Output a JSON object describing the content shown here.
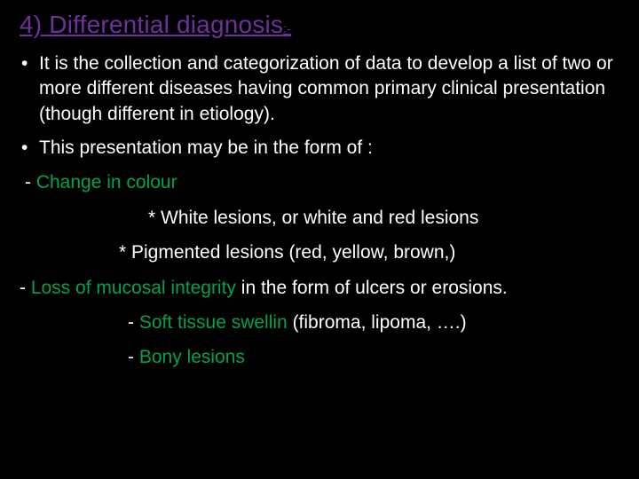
{
  "colors": {
    "background": "#000000",
    "body_text": "#ffffff",
    "title": "#7030a0",
    "highlight": "#00a44a"
  },
  "typography": {
    "title_fontsize": 28,
    "body_fontsize": 21,
    "font_family": "Arial"
  },
  "title": {
    "text": "4)   Differential diagnosis",
    "colon": ":-"
  },
  "bullets": [
    "It is the collection and categorization of data to develop a list of two or more different diseases having common primary clinical presentation (though different in etiology).",
    "This presentation may be in the form of :"
  ],
  "lines": {
    "dash_colour_prefix": " - ",
    "change_colour": "Change in colour",
    "star_white": "*  White lesions, or white and red lesions",
    "star_pigmented": "* Pigmented lesions (red, yellow, brown,)",
    "loss_prefix": "- ",
    "loss_green": "Loss of mucosal integrity",
    "loss_rest": " in the   form of ulcers or erosions.",
    "soft_prefix": "- ",
    "soft_green": "Soft tissue swellin",
    "soft_rest": "     (fibroma, lipoma, ….)",
    "bony_prefix": "- ",
    "bony_green": "Bony lesions"
  }
}
